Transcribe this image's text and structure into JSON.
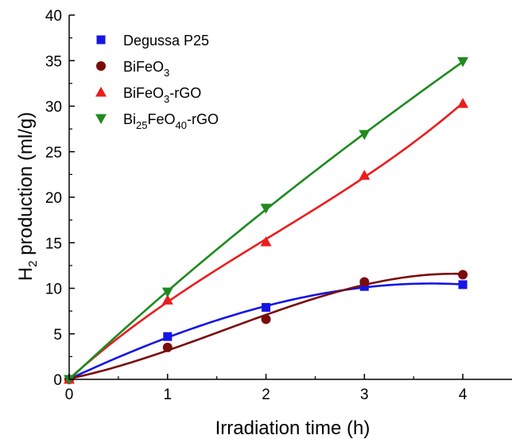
{
  "chart_data": {
    "type": "scatter",
    "title": "",
    "xlabel": "Irradiation time (h)",
    "ylabel_main": "H",
    "ylabel_sub": "2",
    "ylabel_rest": " production (ml/g)",
    "xlim": [
      0,
      4.5
    ],
    "ylim": [
      0,
      40
    ],
    "x_ticks": [
      "0",
      "1",
      "2",
      "3",
      "4"
    ],
    "y_ticks": [
      "0",
      "5",
      "10",
      "15",
      "20",
      "25",
      "30",
      "35",
      "40"
    ],
    "grid": false,
    "legend_position": "top-left",
    "series": [
      {
        "name": "Degussa P25",
        "legend_parts": [
          {
            "t": "Degussa P25",
            "sub": false
          }
        ],
        "marker": "square",
        "color": "#1515e6",
        "x": [
          0,
          1,
          2,
          3,
          4
        ],
        "y": [
          0,
          4.7,
          7.9,
          10.2,
          10.4
        ]
      },
      {
        "name": "BiFeO3",
        "legend_parts": [
          {
            "t": "BiFeO",
            "sub": false
          },
          {
            "t": "3",
            "sub": true
          }
        ],
        "marker": "circle",
        "color": "#7a0c0c",
        "x": [
          0,
          1,
          2,
          3,
          4
        ],
        "y": [
          0,
          3.5,
          6.6,
          10.7,
          11.5
        ]
      },
      {
        "name": "BiFeO3-rGO",
        "legend_parts": [
          {
            "t": "BiFeO",
            "sub": false
          },
          {
            "t": "3",
            "sub": true
          },
          {
            "t": "-rGO",
            "sub": false
          }
        ],
        "marker": "triangle-up",
        "color": "#ec1c1c",
        "x": [
          0,
          1,
          2,
          3,
          4
        ],
        "y": [
          0,
          8.7,
          15.1,
          22.4,
          30.3
        ]
      },
      {
        "name": "Bi25FeO40-rGO",
        "legend_parts": [
          {
            "t": "Bi",
            "sub": false
          },
          {
            "t": "25",
            "sub": true
          },
          {
            "t": "FeO",
            "sub": false
          },
          {
            "t": "40",
            "sub": true
          },
          {
            "t": "-rGO",
            "sub": false
          }
        ],
        "marker": "triangle-down",
        "color": "#1e8a1e",
        "x": [
          0,
          1,
          2,
          3,
          4
        ],
        "y": [
          0,
          9.6,
          18.8,
          26.9,
          34.9
        ]
      }
    ]
  }
}
